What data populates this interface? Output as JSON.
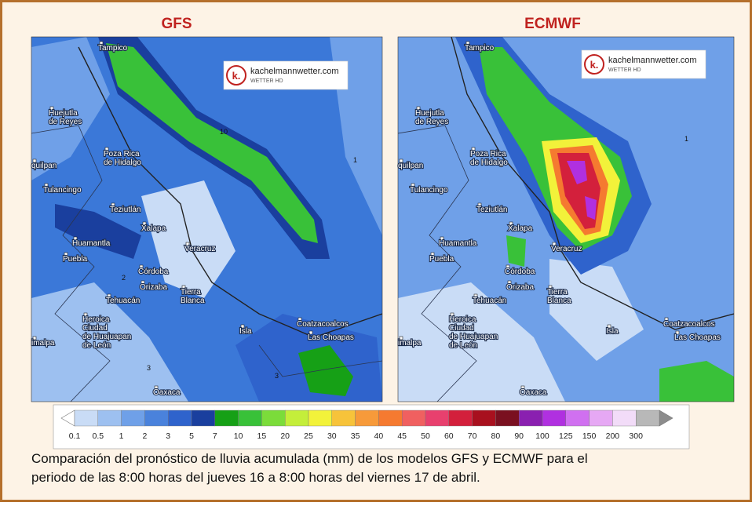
{
  "panels": [
    {
      "title": "GFS",
      "logo": {
        "mark": "k.",
        "site": "kachelmannwetter.com",
        "tagline": "WETTER HD"
      },
      "cities": [
        {
          "lines": [
            "Tampico"
          ]
        },
        {
          "lines": [
            "Huejutla",
            "de Reyes"
          ]
        },
        {
          "lines": [
            "Poza Rica",
            "de Hidalgo"
          ]
        },
        {
          "lines": [
            "quilpan"
          ]
        },
        {
          "lines": [
            "Tulancingo"
          ]
        },
        {
          "lines": [
            "Teziutlán"
          ]
        },
        {
          "lines": [
            "Xalapa"
          ]
        },
        {
          "lines": [
            "Huamantla"
          ]
        },
        {
          "lines": [
            "Puebla"
          ]
        },
        {
          "lines": [
            "Veracruz"
          ]
        },
        {
          "lines": [
            "Córdoba"
          ]
        },
        {
          "lines": [
            "Orizaba"
          ]
        },
        {
          "lines": [
            "Tehuacán"
          ]
        },
        {
          "lines": [
            "Tierra",
            "Blanca"
          ]
        },
        {
          "lines": [
            "Heroica",
            "Ciudad",
            "de Huajuapan",
            "de León"
          ]
        },
        {
          "lines": [
            "Isla"
          ]
        },
        {
          "lines": [
            "Coatzacoalcos"
          ]
        },
        {
          "lines": [
            "Las Choapas"
          ]
        },
        {
          "lines": [
            "Oaxaca"
          ]
        },
        {
          "lines": [
            "imalpa"
          ]
        }
      ],
      "contour_labels": [
        "10",
        "1",
        "2",
        "3",
        "3"
      ]
    },
    {
      "title": "ECMWF",
      "logo": {
        "mark": "k.",
        "site": "kachelmannwetter.com",
        "tagline": "WETTER HD"
      },
      "cities": [
        {
          "lines": [
            "Tampico"
          ]
        },
        {
          "lines": [
            "Huejutla",
            "de Reyes"
          ]
        },
        {
          "lines": [
            "Poza Rica",
            "de Hidalgo"
          ]
        },
        {
          "lines": [
            "quilpan"
          ]
        },
        {
          "lines": [
            "Tulancingo"
          ]
        },
        {
          "lines": [
            "Teziutlán"
          ]
        },
        {
          "lines": [
            "Xalapa"
          ]
        },
        {
          "lines": [
            "Huamantla"
          ]
        },
        {
          "lines": [
            "Puebla"
          ]
        },
        {
          "lines": [
            "Veracruz"
          ]
        },
        {
          "lines": [
            "Córdoba"
          ]
        },
        {
          "lines": [
            "Orizaba"
          ]
        },
        {
          "lines": [
            "Tehuacán"
          ]
        },
        {
          "lines": [
            "Tierra",
            "Blanca"
          ]
        },
        {
          "lines": [
            "Heroica",
            "Ciudad",
            "de Huajuapan",
            "de León"
          ]
        },
        {
          "lines": [
            "Isla"
          ]
        },
        {
          "lines": [
            "Coatzacoalcos"
          ]
        },
        {
          "lines": [
            "Las Choapas"
          ]
        },
        {
          "lines": [
            "Oaxaca"
          ]
        },
        {
          "lines": [
            "imalpa"
          ]
        }
      ],
      "contour_labels": [
        "1"
      ]
    }
  ],
  "legend": [
    {
      "label": "0.1",
      "color": "#c9dcf6"
    },
    {
      "label": "0.5",
      "color": "#9dc0f0"
    },
    {
      "label": "1",
      "color": "#6fa0e8"
    },
    {
      "label": "2",
      "color": "#4a82dc"
    },
    {
      "label": "3",
      "color": "#2f63cc"
    },
    {
      "label": "5",
      "color": "#1a3f9e"
    },
    {
      "label": "7",
      "color": "#16a016"
    },
    {
      "label": "10",
      "color": "#39c139"
    },
    {
      "label": "15",
      "color": "#7bdc3a"
    },
    {
      "label": "20",
      "color": "#c4ee3a"
    },
    {
      "label": "25",
      "color": "#f2f23a"
    },
    {
      "label": "30",
      "color": "#f7c33a"
    },
    {
      "label": "35",
      "color": "#f79a3a"
    },
    {
      "label": "40",
      "color": "#f57a30"
    },
    {
      "label": "45",
      "color": "#f06060"
    },
    {
      "label": "50",
      "color": "#e8406e"
    },
    {
      "label": "60",
      "color": "#d3203c"
    },
    {
      "label": "70",
      "color": "#a8101e"
    },
    {
      "label": "80",
      "color": "#7a1020"
    },
    {
      "label": "90",
      "color": "#8a20b0"
    },
    {
      "label": "100",
      "color": "#b030e0"
    },
    {
      "label": "125",
      "color": "#d070f0"
    },
    {
      "label": "150",
      "color": "#e6a8f4"
    },
    {
      "label": "200",
      "color": "#f2dcf8"
    },
    {
      "label": "300",
      "color": "#b8b8b8"
    }
  ],
  "caption": [
    "Comparación del pronóstico de lluvia acumulada (mm) de los modelos GFS y ECMWF para el",
    "periodo de las 8:00 horas del jueves 16 a 8:00 horas del viernes 17 de abril."
  ]
}
